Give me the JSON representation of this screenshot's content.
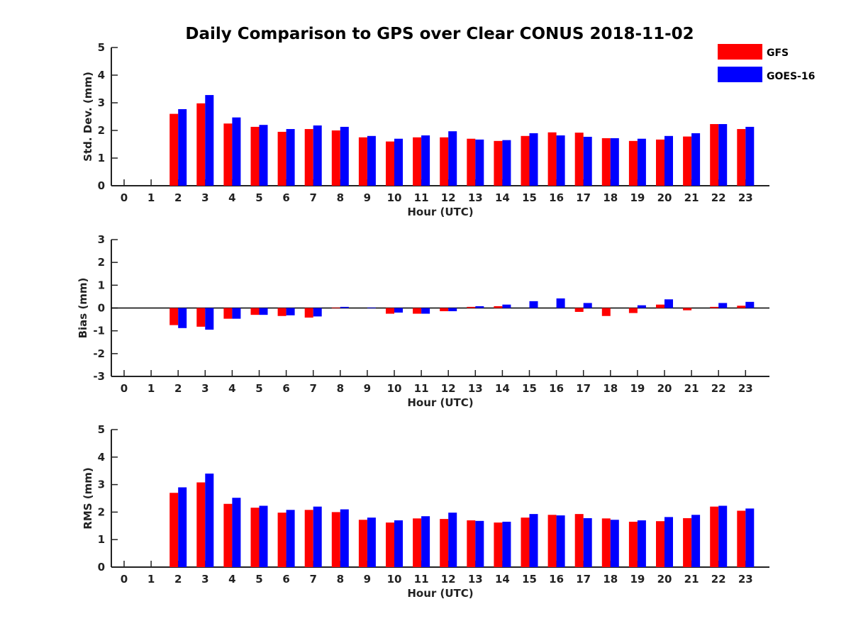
{
  "chart_data": [
    {
      "type": "bar",
      "title": "Daily Comparison to GPS over Clear CONUS 2018-11-02",
      "xlabel": "Hour (UTC)",
      "ylabel": "Std. Dev. (mm)",
      "ylim": [
        0,
        5
      ],
      "yticks": [
        "0",
        "1",
        "2",
        "3",
        "4",
        "5"
      ],
      "categories": [
        "0",
        "1",
        "2",
        "3",
        "4",
        "5",
        "6",
        "7",
        "8",
        "9",
        "10",
        "11",
        "12",
        "13",
        "14",
        "15",
        "16",
        "17",
        "18",
        "19",
        "20",
        "21",
        "22",
        "23"
      ],
      "series": [
        {
          "name": "GFS",
          "color": "#ff0000",
          "values": [
            null,
            null,
            2.6,
            2.98,
            2.25,
            2.13,
            1.95,
            2.05,
            2.0,
            1.75,
            1.6,
            1.75,
            1.75,
            1.7,
            1.62,
            1.8,
            1.93,
            1.92,
            1.72,
            1.62,
            1.67,
            1.78,
            2.23,
            2.05
          ]
        },
        {
          "name": "GOES-16",
          "color": "#0000ff",
          "values": [
            null,
            null,
            2.77,
            3.28,
            2.47,
            2.2,
            2.05,
            2.18,
            2.13,
            1.8,
            1.7,
            1.82,
            1.97,
            1.67,
            1.65,
            1.9,
            1.82,
            1.77,
            1.72,
            1.7,
            1.8,
            1.9,
            2.23,
            2.13
          ]
        }
      ]
    },
    {
      "type": "bar",
      "title": "",
      "xlabel": "Hour (UTC)",
      "ylabel": "Bias (mm)",
      "ylim": [
        -3,
        3
      ],
      "yticks": [
        "-3",
        "-2",
        "-1",
        "0",
        "1",
        "2",
        "3"
      ],
      "categories": [
        "0",
        "1",
        "2",
        "3",
        "4",
        "5",
        "6",
        "7",
        "8",
        "9",
        "10",
        "11",
        "12",
        "13",
        "14",
        "15",
        "16",
        "17",
        "18",
        "19",
        "20",
        "21",
        "22",
        "23"
      ],
      "series": [
        {
          "name": "GFS",
          "color": "#ff0000",
          "values": [
            null,
            null,
            -0.75,
            -0.82,
            -0.47,
            -0.3,
            -0.35,
            -0.42,
            0.02,
            0.0,
            -0.25,
            -0.25,
            -0.14,
            0.05,
            0.08,
            0.0,
            0.0,
            -0.17,
            -0.35,
            -0.22,
            0.15,
            -0.1,
            0.05,
            0.1
          ]
        },
        {
          "name": "GOES-16",
          "color": "#0000ff",
          "values": [
            null,
            null,
            -0.88,
            -0.95,
            -0.47,
            -0.3,
            -0.32,
            -0.37,
            0.05,
            0.02,
            -0.2,
            -0.25,
            -0.14,
            0.08,
            0.15,
            0.3,
            0.42,
            0.22,
            0.0,
            0.12,
            0.38,
            0.0,
            0.22,
            0.27
          ]
        }
      ]
    },
    {
      "type": "bar",
      "title": "",
      "xlabel": "Hour (UTC)",
      "ylabel": "RMS (mm)",
      "ylim": [
        0,
        5
      ],
      "yticks": [
        "0",
        "1",
        "2",
        "3",
        "4",
        "5"
      ],
      "categories": [
        "0",
        "1",
        "2",
        "3",
        "4",
        "5",
        "6",
        "7",
        "8",
        "9",
        "10",
        "11",
        "12",
        "13",
        "14",
        "15",
        "16",
        "17",
        "18",
        "19",
        "20",
        "21",
        "22",
        "23"
      ],
      "series": [
        {
          "name": "GFS",
          "color": "#ff0000",
          "values": [
            null,
            null,
            2.7,
            3.08,
            2.3,
            2.16,
            1.98,
            2.08,
            2.0,
            1.72,
            1.62,
            1.77,
            1.75,
            1.7,
            1.62,
            1.8,
            1.9,
            1.93,
            1.77,
            1.65,
            1.67,
            1.78,
            2.2,
            2.05
          ]
        },
        {
          "name": "GOES-16",
          "color": "#0000ff",
          "values": [
            null,
            null,
            2.9,
            3.4,
            2.52,
            2.23,
            2.08,
            2.2,
            2.1,
            1.8,
            1.7,
            1.85,
            1.98,
            1.68,
            1.65,
            1.93,
            1.88,
            1.78,
            1.72,
            1.7,
            1.82,
            1.9,
            2.23,
            2.13
          ]
        }
      ]
    }
  ],
  "legend": {
    "placement": "top-right",
    "items": [
      {
        "label": "GFS",
        "color": "#ff0000"
      },
      {
        "label": "GOES-16",
        "color": "#0000ff"
      }
    ]
  }
}
